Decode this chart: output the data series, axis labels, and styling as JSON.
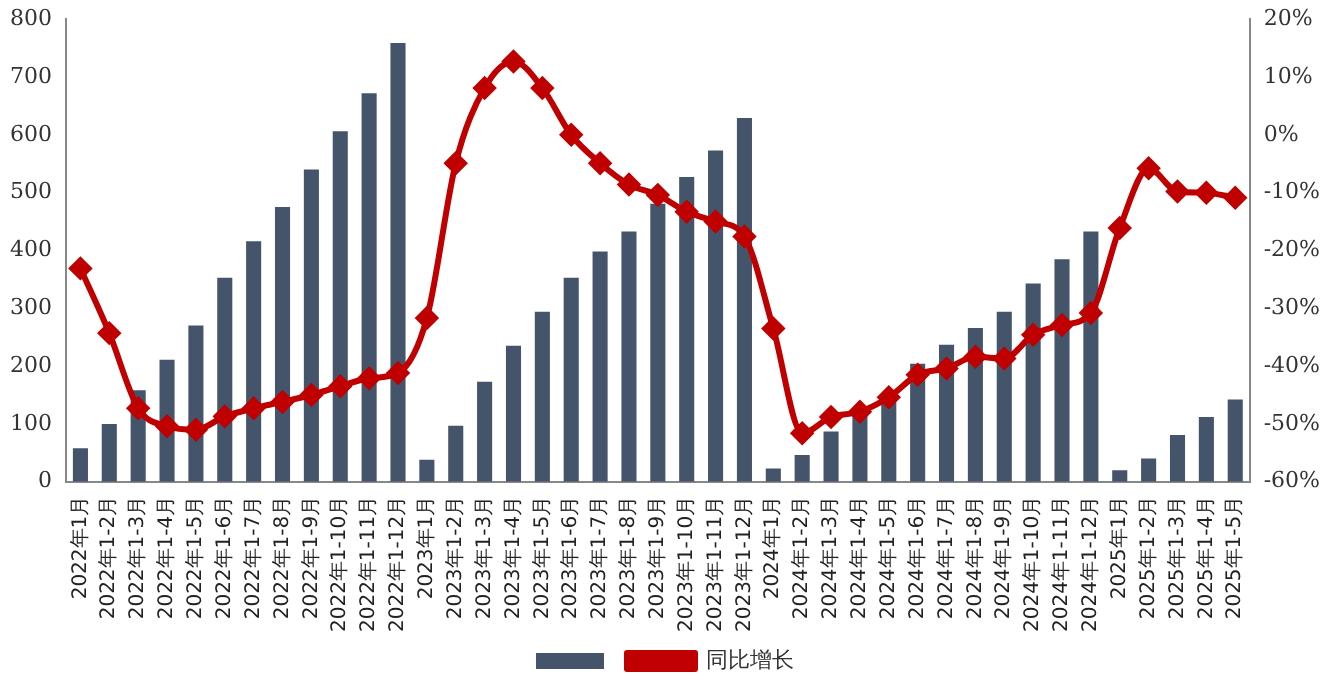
{
  "chart_data": {
    "type": "bar",
    "categories": [
      "2022年1月",
      "2022年1-2月",
      "2022年1-3月",
      "2022年1-4月",
      "2022年1-5月",
      "2022年1-6月",
      "2022年1-7月",
      "2022年1-8月",
      "2022年1-9月",
      "2022年1-10月",
      "2022年1-11月",
      "2022年1-12月",
      "2023年1月",
      "2023年1-2月",
      "2023年1-3月",
      "2023年1-4月",
      "2023年1-5月",
      "2023年1-6月",
      "2023年1-7月",
      "2023年1-8月",
      "2023年1-9月",
      "2023年1-10月",
      "2023年1-11月",
      "2023年1-12月",
      "2024年1月",
      "2024年1-2月",
      "2024年1-3月",
      "2024年1-4月",
      "2024年1-5月",
      "2024年1-6月",
      "2024年1-7月",
      "2024年1-8月",
      "2024年1-9月",
      "2024年1-10月",
      "2024年1-11月",
      "2024年1-12月",
      "2025年1月",
      "2025年1-2月",
      "2025年1-3月",
      "2025年1-4月",
      "2025年1-5月"
    ],
    "series": [
      {
        "color": "#44546a",
        "values": [
          58,
          100,
          158,
          211,
          270,
          353,
          416,
          475,
          540,
          606,
          672,
          759,
          38,
          97,
          173,
          235,
          294,
          353,
          398,
          433,
          481,
          527,
          573,
          629,
          23,
          46,
          87,
          121,
          144,
          204,
          237,
          266,
          294,
          343,
          385,
          433,
          20,
          40,
          81,
          112,
          142
        ]
      },
      {
        "type": "line",
        "name": "同比增长",
        "color": "#c00000",
        "axis": "y2",
        "marker": "diamond",
        "values": [
          -23.1,
          -34.3,
          -47.3,
          -50.4,
          -51,
          -48.7,
          -47.3,
          -46.2,
          -45,
          -43.5,
          -42.1,
          -41.2,
          -31.7,
          -4.9,
          8.1,
          12.7,
          8.1,
          0,
          -4.9,
          -8.6,
          -10.4,
          -13.3,
          -15,
          -17.6,
          -33.5,
          -51.6,
          -48.8,
          -47.9,
          -45.4,
          -41.5,
          -40.4,
          -38.4,
          -38.7,
          -34.6,
          -32.9,
          -30.8,
          -16.1,
          -5.8,
          -9.8,
          -10,
          -10.9
        ]
      }
    ],
    "ylim": [
      0,
      800
    ],
    "yticks": [
      0,
      100,
      200,
      300,
      400,
      500,
      600,
      700,
      800
    ],
    "y2lim": [
      -60,
      20
    ],
    "y2ticks": [
      {
        "value": -60,
        "label": "-60%"
      },
      {
        "value": -50,
        "label": "-50%"
      },
      {
        "value": -40,
        "label": "-40%"
      },
      {
        "value": -30,
        "label": "-30%"
      },
      {
        "value": -20,
        "label": "-20%"
      },
      {
        "value": -10,
        "label": "-10%"
      },
      {
        "value": 0,
        "label": "0%"
      },
      {
        "value": 10,
        "label": "10%"
      },
      {
        "value": 20,
        "label": "20%"
      }
    ],
    "grid": false,
    "legend": "bottom"
  }
}
